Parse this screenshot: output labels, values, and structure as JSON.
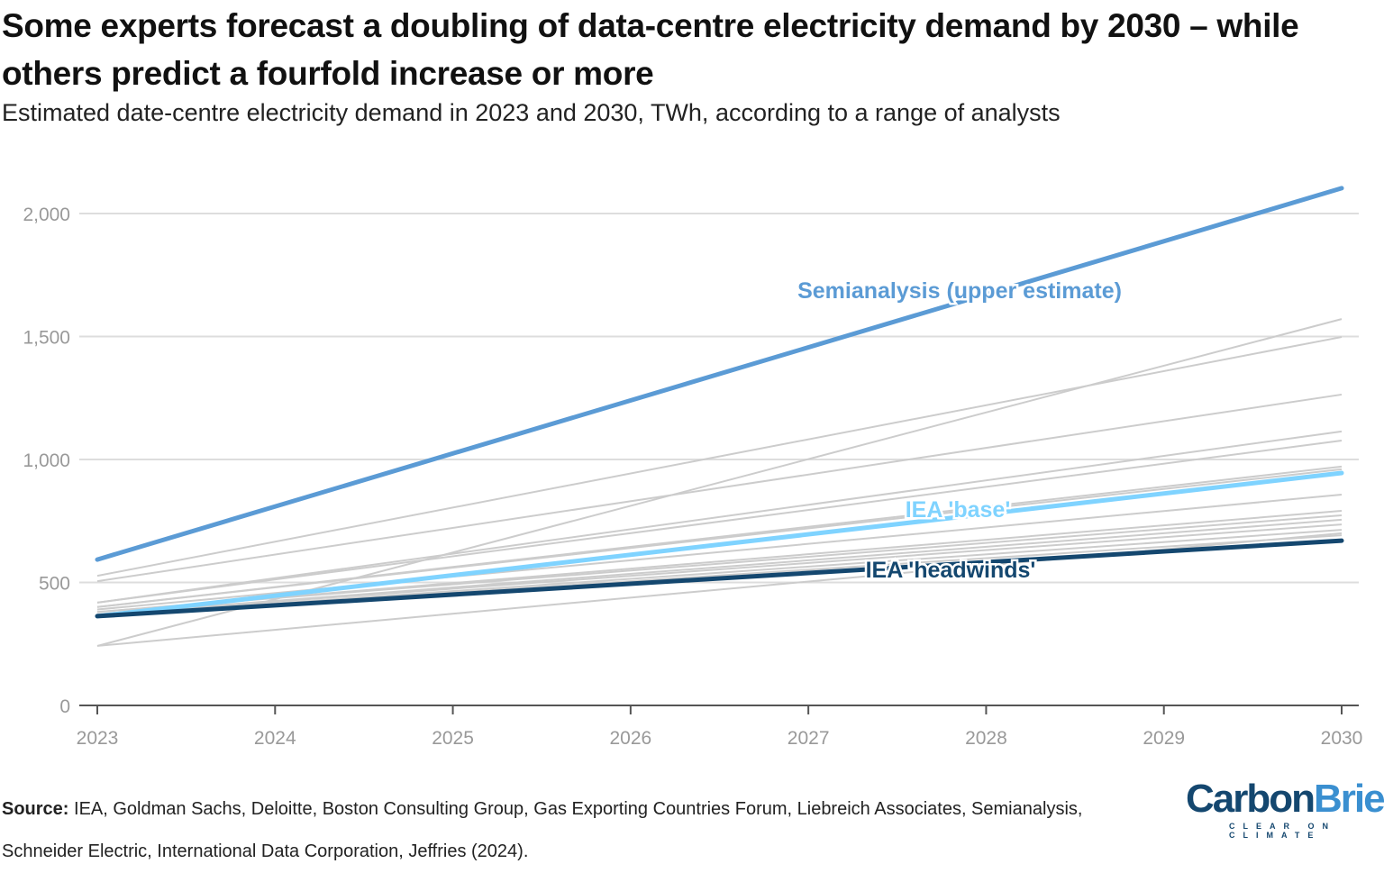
{
  "chart_data": {
    "type": "line",
    "title": "Some experts forecast a doubling of data-centre electricity demand by 2030 – while others predict a fourfold increase or more",
    "subtitle": "Estimated date-centre electricity demand in 2023 and 2030, TWh, according to a range of analysts",
    "x": [
      2023,
      2030
    ],
    "xticks": [
      "2023",
      "2024",
      "2025",
      "2026",
      "2027",
      "2028",
      "2029",
      "2030"
    ],
    "yticks": [
      "0",
      "500",
      "1,000",
      "1,500",
      "2,000"
    ],
    "ylim": [
      0,
      2100
    ],
    "grid": true,
    "highlight": [
      {
        "name": "Semianalysis (upper estimate)",
        "values": [
          593,
          2103
        ],
        "color": "#5b9bd5"
      },
      {
        "name": "IEA 'base'",
        "values": [
          363,
          945
        ],
        "color": "#7fd3ff"
      },
      {
        "name": "IEA 'headwinds'",
        "values": [
          363,
          670
        ],
        "color": "#14476f"
      }
    ],
    "others": [
      [
        242,
        1571
      ],
      [
        527,
        1498
      ],
      [
        505,
        1264
      ],
      [
        418,
        1114
      ],
      [
        418,
        1077
      ],
      [
        400,
        971
      ],
      [
        400,
        960
      ],
      [
        390,
        857
      ],
      [
        380,
        791
      ],
      [
        380,
        773
      ],
      [
        370,
        755
      ],
      [
        370,
        736
      ],
      [
        365,
        714
      ],
      [
        365,
        692
      ],
      [
        242,
        700
      ]
    ],
    "others_color": "#cccccc"
  },
  "source_label": "Source:",
  "source_text": " IEA, Goldman Sachs, Deloitte, Boston Consulting Group, Gas Exporting Countries Forum, Liebreich Associates, Semianalysis, Schneider Electric, International Data Corporation, Jeffries (2024).",
  "logo": {
    "part1": "Carbon",
    "part2": "Brief",
    "tagline": "CLEAR ON CLIMATE"
  }
}
